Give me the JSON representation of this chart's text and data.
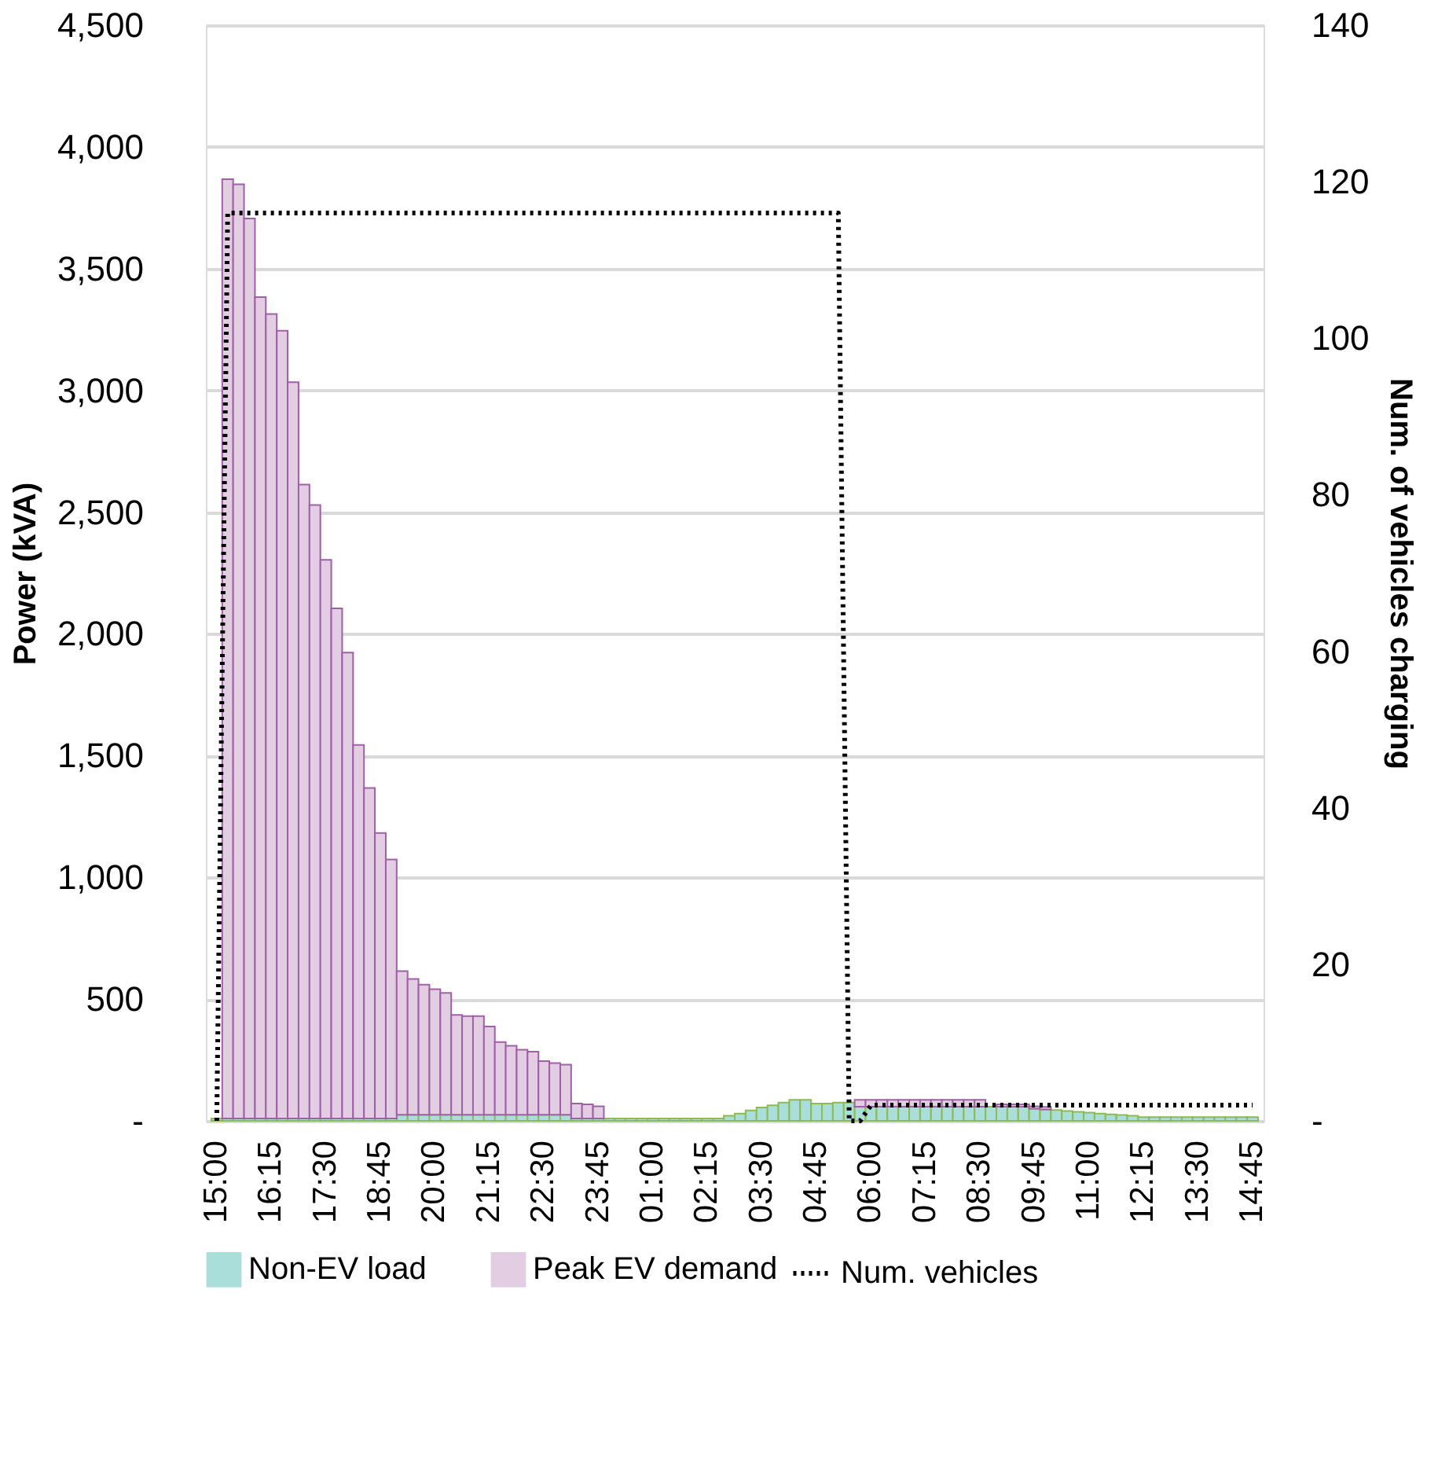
{
  "chart_data": {
    "type": "bar",
    "stacked": true,
    "categories": [
      "15:00",
      null,
      null,
      null,
      null,
      "16:15",
      null,
      null,
      null,
      null,
      "17:30",
      null,
      null,
      null,
      null,
      "18:45",
      null,
      null,
      null,
      null,
      "20:00",
      null,
      null,
      null,
      null,
      "21:15",
      null,
      null,
      null,
      null,
      "22:30",
      null,
      null,
      null,
      null,
      "23:45",
      null,
      null,
      null,
      null,
      "01:00",
      null,
      null,
      null,
      null,
      "02:15",
      null,
      null,
      null,
      null,
      "03:30",
      null,
      null,
      null,
      null,
      "04:45",
      null,
      null,
      null,
      null,
      "06:00",
      null,
      null,
      null,
      null,
      "07:15",
      null,
      null,
      null,
      null,
      "08:30",
      null,
      null,
      null,
      null,
      "09:45",
      null,
      null,
      null,
      null,
      "11:00",
      null,
      null,
      null,
      null,
      "12:15",
      null,
      null,
      null,
      null,
      "13:30",
      null,
      null,
      null,
      null,
      "14:45"
    ],
    "ylabel": "Power (kVA)",
    "y2label": "Num. of vehicles charging",
    "ylim": [
      0,
      4500
    ],
    "yticks": [
      {
        "value": 0,
        "label": "-"
      },
      {
        "value": 500,
        "label": "500"
      },
      {
        "value": 1000,
        "label": "1,000"
      },
      {
        "value": 1500,
        "label": "1,500"
      },
      {
        "value": 2000,
        "label": "2,000"
      },
      {
        "value": 2500,
        "label": "2,500"
      },
      {
        "value": 3000,
        "label": "3,000"
      },
      {
        "value": 3500,
        "label": "3,500"
      },
      {
        "value": 4000,
        "label": "4,000"
      },
      {
        "value": 4500,
        "label": "4,500"
      }
    ],
    "y2lim": [
      0,
      140
    ],
    "y2ticks": [
      {
        "value": 0,
        "label": "-"
      },
      20,
      40,
      60,
      80,
      100,
      120,
      140
    ],
    "grid": "y",
    "legend": "bottom",
    "series": [
      {
        "name": "Non-EV load",
        "color": "#a9dedb",
        "values": [
          10,
          10,
          10,
          10,
          10,
          10,
          10,
          10,
          10,
          10,
          10,
          10,
          10,
          10,
          10,
          10,
          10,
          25,
          25,
          25,
          25,
          25,
          25,
          25,
          25,
          25,
          25,
          25,
          25,
          25,
          25,
          25,
          25,
          10,
          10,
          10,
          10,
          10,
          10,
          10,
          10,
          10,
          10,
          10,
          10,
          10,
          10,
          21,
          30,
          43,
          55,
          64,
          75,
          86,
          86,
          71,
          71,
          75,
          75,
          58,
          58,
          58,
          58,
          58,
          58,
          58,
          58,
          58,
          58,
          58,
          58,
          58,
          58,
          58,
          58,
          50,
          47,
          44,
          40,
          37,
          34,
          30,
          27,
          24,
          21,
          15,
          15,
          15,
          15,
          15,
          15,
          15,
          15,
          15,
          15,
          15
        ]
      },
      {
        "name": "Peak EV demand",
        "color": "#e3cde2",
        "values": [
          0,
          3857,
          3836,
          3696,
          3373,
          3304,
          3235,
          3024,
          2603,
          2519,
          2294,
          2095,
          1913,
          1534,
          1357,
          1172,
          1063,
          590,
          558,
          534,
          516,
          500,
          410,
          405,
          405,
          362,
          299,
          283,
          267,
          259,
          220,
          212,
          206,
          61,
          58,
          50,
          0,
          0,
          0,
          0,
          0,
          0,
          0,
          0,
          0,
          0,
          0,
          0,
          0,
          0,
          0,
          0,
          0,
          0,
          0,
          0,
          0,
          0,
          0,
          28,
          28,
          28,
          28,
          28,
          28,
          28,
          28,
          28,
          28,
          28,
          28,
          null,
          10,
          10,
          10,
          10,
          10,
          0,
          0,
          0,
          0,
          0,
          0,
          0,
          0,
          0,
          0,
          0,
          0,
          0,
          0,
          0,
          0,
          0,
          0,
          0
        ]
      },
      {
        "name": "Num. vehicles",
        "type": "line",
        "axis": "y2",
        "color": "#000000",
        "line_style": "dotted",
        "values": [
          0,
          116,
          116,
          116,
          116,
          116,
          116,
          116,
          116,
          116,
          116,
          116,
          116,
          116,
          116,
          116,
          116,
          116,
          116,
          116,
          116,
          116,
          116,
          116,
          116,
          116,
          116,
          116,
          116,
          116,
          116,
          116,
          116,
          116,
          116,
          116,
          116,
          116,
          116,
          116,
          116,
          116,
          116,
          116,
          116,
          116,
          116,
          116,
          116,
          116,
          116,
          116,
          116,
          116,
          116,
          116,
          116,
          116,
          0,
          0,
          2,
          2,
          2,
          2,
          2,
          2,
          2,
          2,
          2,
          2,
          2,
          2,
          2,
          2,
          2,
          2,
          2,
          2,
          2,
          2,
          2,
          2,
          2,
          2,
          2,
          2,
          2,
          2,
          2,
          2,
          2,
          2,
          2,
          2,
          2,
          2
        ]
      }
    ]
  }
}
